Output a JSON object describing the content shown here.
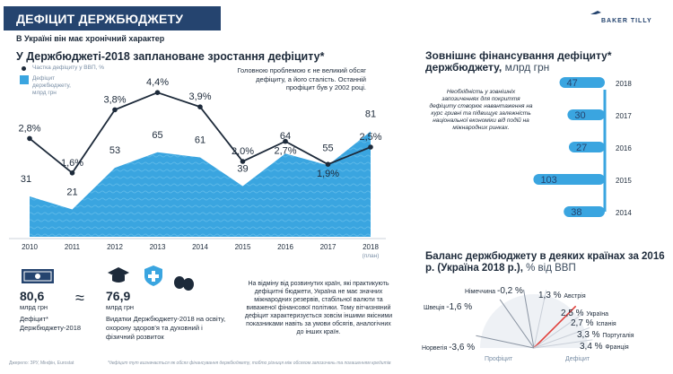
{
  "header": {
    "title": "ДЕФІЦИТ ДЕРЖБЮДЖЕТУ",
    "subtitle": "В Україні він має хронічний характер",
    "logo_text": "BAKER TILLY"
  },
  "main": {
    "heading": "У Держбюджеті-2018 заплановане зростання дефіциту*",
    "legend_line": "Частка дефіциту у ВВП, %",
    "legend_area": "Дефіцит держбюджету, млрд грн",
    "note": "Головною проблемою є не великий обсяг дефіциту, а його сталість. Останній профіцит був у 2002 році.",
    "plan_label": "(план)"
  },
  "chart_data": [
    {
      "type": "area",
      "title": "У Держбюджеті-2018 заплановане зростання дефіциту*",
      "categories": [
        "2010",
        "2011",
        "2012",
        "2013",
        "2014",
        "2015",
        "2016",
        "2017",
        "2018"
      ],
      "series": [
        {
          "name": "Дефіцит держбюджету, млрд грн",
          "values": [
            31,
            21,
            53,
            65,
            61,
            39,
            64,
            55,
            81
          ],
          "labels": [
            "31",
            "21",
            "53",
            "65",
            "61",
            "39",
            "64",
            "55",
            "81"
          ]
        },
        {
          "name": "Частка дефіциту у ВВП, %",
          "type": "line",
          "values": [
            2.8,
            1.6,
            3.8,
            4.4,
            3.9,
            2.0,
            2.7,
            1.9,
            2.5
          ],
          "labels": [
            "2,8%",
            "1,6%",
            "3,8%",
            "4,4%",
            "3,9%",
            "2,0%",
            "2,7%",
            "1,9%",
            "2,5%"
          ]
        }
      ],
      "grid": false
    },
    {
      "type": "bar",
      "title": "Зовнішнє фінансування дефіциту* держбюджету,",
      "unit": "млрд грн",
      "categories": [
        "2018",
        "2017",
        "2016",
        "2015",
        "2014"
      ],
      "values": [
        47,
        30,
        27,
        103,
        38
      ],
      "orientation": "horizontal"
    },
    {
      "type": "bar",
      "title": "Баланс держбюджету в деяких країнах за 2016 р. (Україна 2018 р.),",
      "unit": "% від ВВП",
      "categories": [
        "Німеччина",
        "Австрія",
        "Швеція",
        "Україна",
        "Іспанія",
        "Португалія",
        "Франція",
        "Норвегія"
      ],
      "values": [
        -0.2,
        1.3,
        -1.6,
        2.5,
        2.7,
        3.3,
        3.4,
        -3.6
      ],
      "labels": [
        "-0,2 %",
        "1,3 %",
        "-1,6 %",
        "2,5 %",
        "2,7 %",
        "3,3 %",
        "3,4 %",
        "-3,6 %"
      ],
      "label_profit": "Профіцит",
      "label_deficit": "Дефіцит"
    }
  ],
  "ext": {
    "note": "Необхідність у зовнішніх запозиченнях для покриття дефіциту створює навантаження на курс гривні та підвищує залежність національної економіки від подій на міжнародних ринках."
  },
  "stats": {
    "deficit_value": "80,6",
    "deficit_unit": "млрд грн",
    "deficit_label": "Дефіцит* Держбюджету-2018",
    "approx": "≈",
    "spend_value": "76,9",
    "spend_unit": "млрд грн",
    "spend_label": "Видатки Держбюджету-2018 на освіту, охорону здоров'я та духовний і фізичний розвиток",
    "desc": "На відміну від розвинутих країн, які практикують дефіцитні бюджети, Україна не має значних міжнародних резервів, стабільної валюти та виваженої фінансової політики. Тому вітчизняний дефіцит характеризується зовсім іншими якісними показниками навіть за умови обсягів, аналогічних до інших країн."
  },
  "footer": {
    "source": "Джерело: ЗРУ, Мінфін, Eurostat",
    "footnote": "*дефіцит тут визначається як обсяг фінансування держбюджету, тобто різниця між обсягом запозичень та погашенням кредитів"
  },
  "colors": {
    "navy": "#25446f",
    "area": "#3aa5e0",
    "area_dark": "#2d8ccc",
    "line": "#1d2a3a",
    "fan_neg": "#c44b4b",
    "fan_pos": "#3b7fc4"
  }
}
